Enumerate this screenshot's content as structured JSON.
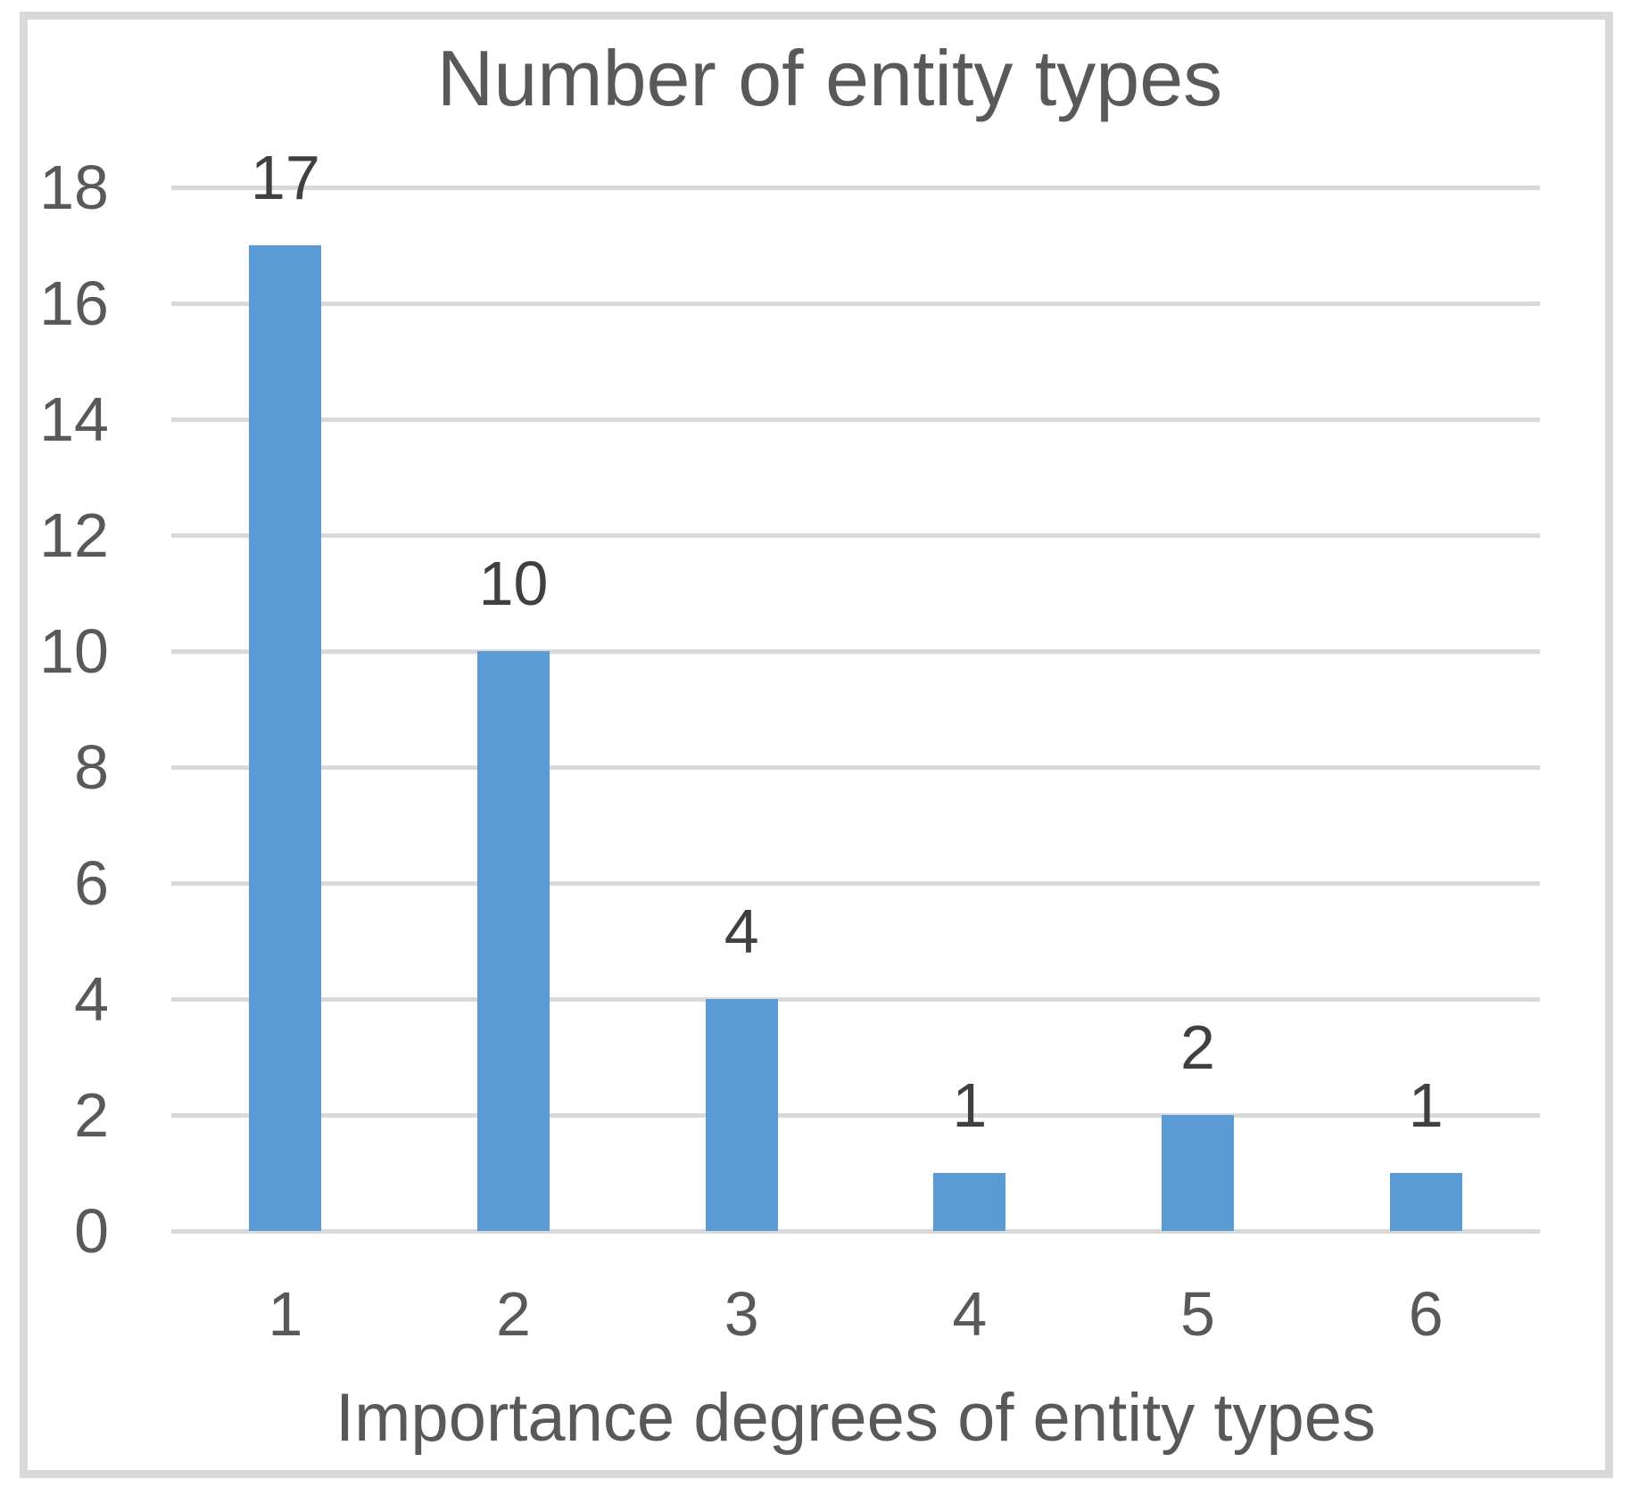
{
  "chart_data": {
    "type": "bar",
    "title": "Number of entity types",
    "xlabel": "Importance degrees of entity types",
    "ylabel": "",
    "categories": [
      "1",
      "2",
      "3",
      "4",
      "5",
      "6"
    ],
    "values": [
      17,
      10,
      4,
      1,
      2,
      1
    ],
    "data_labels": [
      "17",
      "10",
      "4",
      "1",
      "2",
      "1"
    ],
    "yticks": [
      0,
      2,
      4,
      6,
      8,
      10,
      12,
      14,
      16,
      18
    ],
    "ylim": [
      0,
      18
    ],
    "grid": "horizontal-only",
    "legend_position": "none",
    "colors": {
      "bar": "#5B9BD5",
      "gridline": "#D9D9D9",
      "frame_border": "#D9D9D9",
      "axis_text": "#595959",
      "title_text": "#595959",
      "data_label_text": "#404040",
      "background": "#FFFFFF"
    }
  }
}
